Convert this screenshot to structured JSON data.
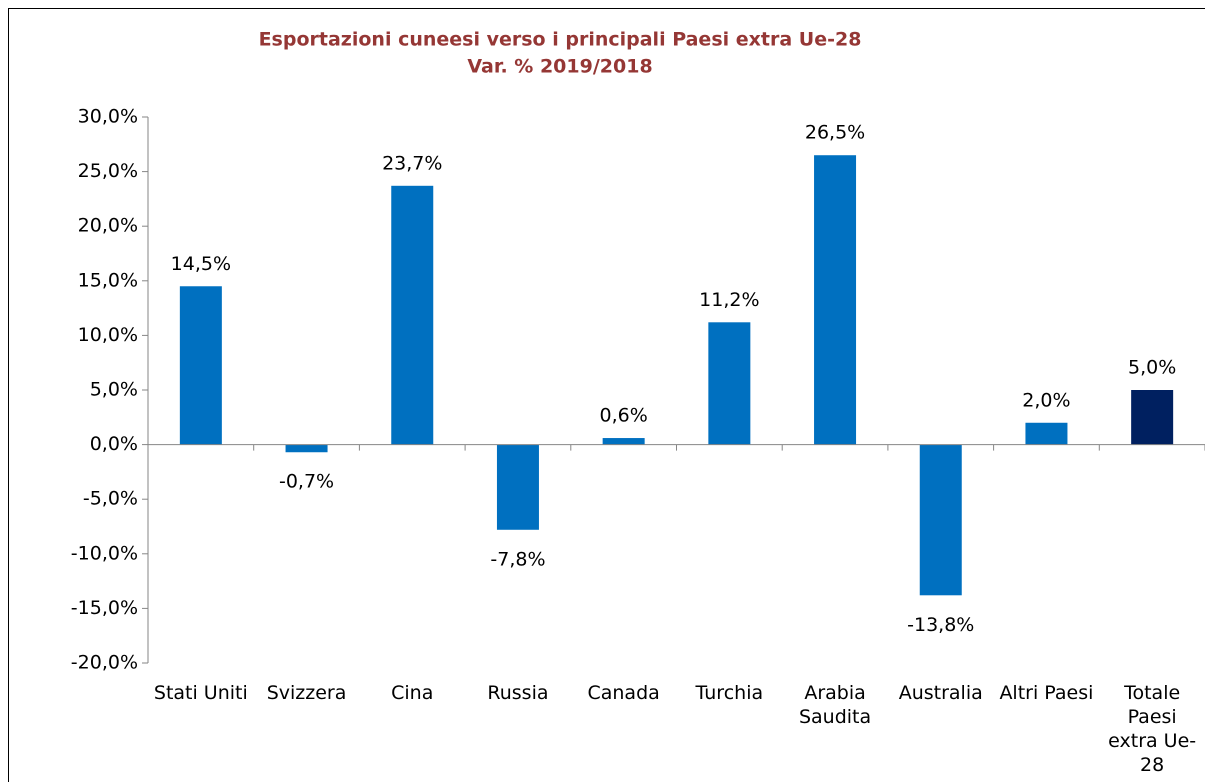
{
  "chart_data": {
    "type": "bar",
    "title": "Esportazioni cuneesi verso i principali Paesi extra Ue-28",
    "subtitle": "Var. % 2019/2018",
    "categories": [
      "Stati Uniti",
      "Svizzera",
      "Cina",
      "Russia",
      "Canada",
      "Turchia",
      "Arabia Saudita",
      "Australia",
      "Altri Paesi",
      "Totale Paesi extra Ue-28"
    ],
    "values": [
      14.5,
      -0.7,
      23.7,
      -7.8,
      0.6,
      11.2,
      26.5,
      -13.8,
      2.0,
      5.0
    ],
    "value_labels": [
      "14,5%",
      "-0,7%",
      "23,7%",
      "-7,8%",
      "0,6%",
      "11,2%",
      "26,5%",
      "-13,8%",
      "2,0%",
      "5,0%"
    ],
    "colors": [
      "#0070c0",
      "#0070c0",
      "#0070c0",
      "#0070c0",
      "#0070c0",
      "#0070c0",
      "#0070c0",
      "#0070c0",
      "#0070c0",
      "#002060"
    ],
    "ylim": [
      -20,
      30
    ],
    "yticks": [
      {
        "value": -20,
        "label": "-20,0%"
      },
      {
        "value": -15,
        "label": "-15,0%"
      },
      {
        "value": -10,
        "label": "-10,0%"
      },
      {
        "value": -5,
        "label": "-5,0%"
      },
      {
        "value": 0,
        "label": "0,0%"
      },
      {
        "value": 5,
        "label": "5,0%"
      },
      {
        "value": 10,
        "label": "10,0%"
      },
      {
        "value": 15,
        "label": "15,0%"
      },
      {
        "value": 20,
        "label": "20,0%"
      },
      {
        "value": 25,
        "label": "25,0%"
      },
      {
        "value": 30,
        "label": "30,0%"
      }
    ],
    "grid": false
  }
}
